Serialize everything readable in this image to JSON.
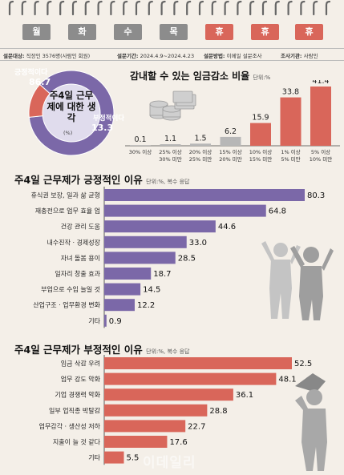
{
  "tabs": [
    {
      "label": "월",
      "color": "#8c8c8c"
    },
    {
      "label": "화",
      "color": "#8c8c8c"
    },
    {
      "label": "수",
      "color": "#8c8c8c"
    },
    {
      "label": "목",
      "color": "#8c8c8c"
    },
    {
      "label": "휴",
      "color": "#d9665a"
    },
    {
      "label": "휴",
      "color": "#d9665a"
    },
    {
      "label": "휴",
      "color": "#d9665a"
    }
  ],
  "survey": {
    "target_label": "설문대상:",
    "target": "직장인 3576명(사람인 회원)",
    "period_label": "설문기간:",
    "period": "2024.4.9~2024.4.23",
    "method_label": "설문방법:",
    "method": "이메일 설문조사",
    "org_label": "조사기관:",
    "org": "사람인"
  },
  "colors": {
    "accent": "#d9665a",
    "purple": "#7b68a8",
    "lavender": "#e0dced",
    "gray_bar": "#b7b7b7"
  },
  "watermark": "이데일리",
  "chart_data": [
    {
      "type": "pie",
      "title": "주4일 근무제에 대한 생각",
      "unit": "(%)",
      "slices": [
        {
          "label": "긍정적이다",
          "value": 86.7,
          "color": "#7b68a8"
        },
        {
          "label": "부정적이다",
          "value": 13.3,
          "color": "#d9665a"
        }
      ]
    },
    {
      "type": "bar",
      "title": "감내할 수 있는 임금감소 비율",
      "unit": "단위:%",
      "categories": [
        [
          "30% 이상"
        ],
        [
          "25% 이상",
          "30% 미만"
        ],
        [
          "20% 이상",
          "25% 미만"
        ],
        [
          "15% 이상",
          "20% 미만"
        ],
        [
          "10% 이상",
          "15% 미만"
        ],
        [
          "1% 이상",
          "5% 미만"
        ],
        [
          "5% 이상",
          "10% 미만"
        ]
      ],
      "values": [
        0.1,
        1.1,
        1.5,
        6.2,
        15.9,
        33.8,
        41.4
      ],
      "ylim": [
        0,
        41.4
      ]
    },
    {
      "type": "bar",
      "orientation": "horizontal",
      "title": "주4일 근무제가 긍정적인 이유",
      "unit": "단위:%, 복수 응답",
      "categories": [
        "휴식권 보장, 일과 삶 균형",
        "재충전으로 업무 효율 업",
        "건강 관리 도움",
        "내수진작 · 경제성장",
        "자녀 돌봄 용이",
        "일자리 창출 효과",
        "부업으로 수입 늘일 것",
        "산업구조 · 업무환경 변화",
        "기타"
      ],
      "values": [
        80.3,
        64.8,
        44.6,
        33.0,
        28.5,
        18.7,
        14.5,
        12.2,
        0.9
      ],
      "value_labels": [
        "80.3",
        "64.8",
        "44.6",
        "33.0",
        "28.5",
        "18.7",
        "14.5",
        "12.2",
        "0.9"
      ],
      "xlim": [
        0,
        80.3
      ]
    },
    {
      "type": "bar",
      "orientation": "horizontal",
      "title": "주4일 근무제가 부정적인 이유",
      "unit": "단위:%, 복수 응답",
      "categories": [
        "임금 삭감 우려",
        "업무 강도 악화",
        "기업 경쟁력 악화",
        "일부 업직종 박탈감",
        "업무감각 · 생산성 저하",
        "지출이 늘 것 같다",
        "기타"
      ],
      "values": [
        52.5,
        48.1,
        36.1,
        28.8,
        22.7,
        17.6,
        5.5
      ],
      "value_labels": [
        "52.5",
        "48.1",
        "36.1",
        "28.8",
        "22.7",
        "17.6",
        "5.5"
      ],
      "xlim": [
        0,
        52.5
      ]
    }
  ]
}
